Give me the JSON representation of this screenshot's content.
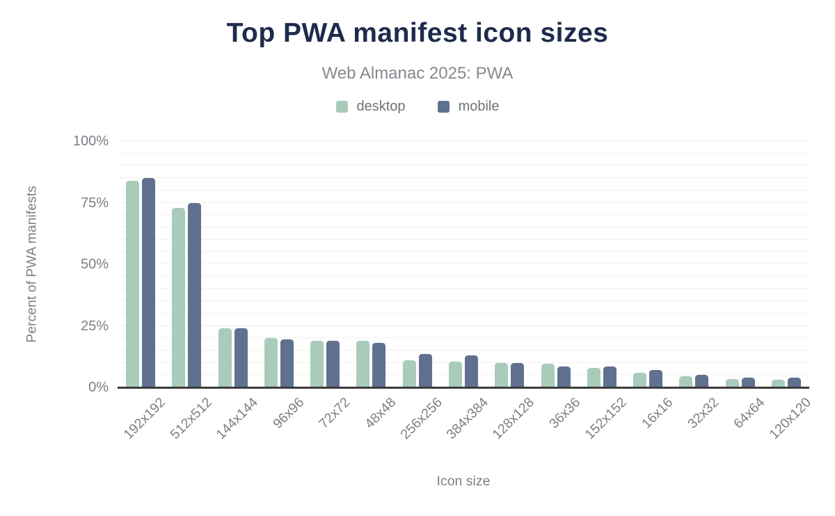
{
  "title": "Top PWA manifest icon sizes",
  "subtitle": "Web Almanac 2025: PWA",
  "legend": [
    {
      "label": "desktop",
      "color": "#a9cbba"
    },
    {
      "label": "mobile",
      "color": "#60718f"
    }
  ],
  "colors": {
    "title": "#1e2b4d",
    "subtitle": "#84888e",
    "axis_text": "#7b7f85",
    "gridline": "#f0f0f0",
    "axis_line": "#3c3c3c",
    "desktop": "#a9cbba",
    "mobile": "#60718f",
    "background": "#ffffff"
  },
  "chart_data": {
    "type": "bar",
    "title": "Top PWA manifest icon sizes",
    "subtitle": "Web Almanac 2025: PWA",
    "xlabel": "Icon size",
    "ylabel": "Percent of PWA manifests",
    "categories": [
      "192x192",
      "512x512",
      "144x144",
      "96x96",
      "72x72",
      "48x48",
      "256x256",
      "384x384",
      "128x128",
      "36x36",
      "152x152",
      "16x16",
      "32x32",
      "64x64",
      "120x120"
    ],
    "series": [
      {
        "name": "desktop",
        "color": "#a9cbba",
        "values": [
          84,
          73,
          24,
          20,
          19,
          19,
          11,
          10.5,
          10,
          9.5,
          8,
          6,
          4.5,
          3.5,
          3
        ]
      },
      {
        "name": "mobile",
        "color": "#60718f",
        "values": [
          85,
          75,
          24,
          19.5,
          19,
          18,
          13.5,
          13,
          10,
          8.5,
          8.5,
          7,
          5,
          4,
          4
        ]
      }
    ],
    "ylim": [
      0,
      100
    ],
    "yticks": [
      {
        "value": 0,
        "label": "0%"
      },
      {
        "value": 25,
        "label": "25%"
      },
      {
        "value": 50,
        "label": "50%"
      },
      {
        "value": 75,
        "label": "75%"
      },
      {
        "value": 100,
        "label": "100%"
      }
    ],
    "grid": {
      "horizontal": true,
      "interval_percent": 5
    },
    "legend_position": "top",
    "xtick_rotation_deg": -45
  }
}
